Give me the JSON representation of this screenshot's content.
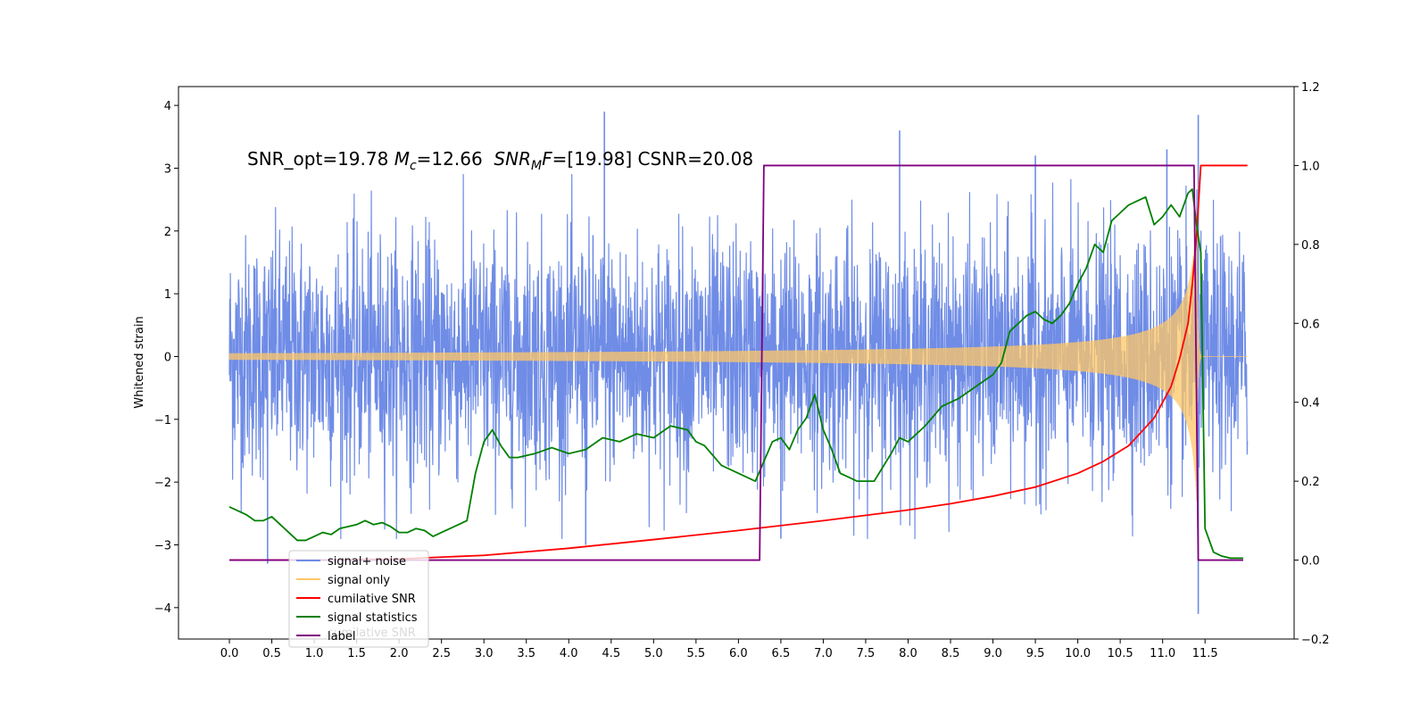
{
  "chart_data": {
    "type": "line",
    "annotation": {
      "parts": [
        {
          "text": "SNR_opt=19.78 ",
          "italic": false
        },
        {
          "text": "M",
          "italic": true
        },
        {
          "text": "c",
          "italic": true,
          "sub": true
        },
        {
          "text": "=12.66  ",
          "italic": false
        },
        {
          "text": "SNR",
          "italic": true
        },
        {
          "text": "M",
          "italic": true,
          "sub": true
        },
        {
          "text": "F",
          "italic": true
        },
        {
          "text": "=[19.98] CSNR=20.08",
          "italic": false
        }
      ]
    },
    "ylabel": "Whitened strain",
    "xlim": [
      -0.6,
      12.55
    ],
    "ylim": [
      -4.5,
      4.3
    ],
    "y2lim": [
      -0.2,
      1.2
    ],
    "x_ticks": [
      "0.0",
      "0.5",
      "1.0",
      "1.5",
      "2.0",
      "2.5",
      "3.0",
      "3.5",
      "4.0",
      "4.5",
      "5.0",
      "5.5",
      "6.0",
      "6.5",
      "7.0",
      "7.5",
      "8.0",
      "8.5",
      "9.0",
      "9.5",
      "10.0",
      "10.5",
      "11.0",
      "11.5"
    ],
    "y_ticks": [
      "−4",
      "−3",
      "−2",
      "−1",
      "0",
      "1",
      "2",
      "3",
      "4"
    ],
    "y2_ticks": [
      "−0.2",
      "0.0",
      "0.2",
      "0.4",
      "0.6",
      "0.8",
      "1.0",
      "1.2"
    ],
    "legend": {
      "placement": "lower-left",
      "entries": [
        {
          "label": "signal+ noise",
          "color": "#6f8ce6"
        },
        {
          "label": "signal only",
          "color": "#ffc766"
        },
        {
          "label": "cumilative SNR",
          "color": "#ff0000"
        },
        {
          "label": "signal statistics",
          "color": "#008000"
        },
        {
          "label": "label",
          "color": "#800080"
        }
      ],
      "ghost_text": "cumilative SNR"
    },
    "series": [
      {
        "name": "signal+ noise",
        "axis": "left",
        "color": "#6f8ce6",
        "style": "dense-noise",
        "x_range": [
          0.0,
          12.0
        ],
        "typical_band": [
          -1.8,
          1.8
        ],
        "spikes": [
          {
            "x": 4.42,
            "y": 3.9
          },
          {
            "x": 7.9,
            "y": 3.6
          },
          {
            "x": 9.5,
            "y": 3.2
          },
          {
            "x": 11.05,
            "y": 3.3
          },
          {
            "x": 11.42,
            "y": 3.85
          },
          {
            "x": 11.42,
            "y": -4.1
          },
          {
            "x": 0.45,
            "y": -3.3
          },
          {
            "x": 4.2,
            "y": -3.0
          },
          {
            "x": 6.5,
            "y": -2.9
          }
        ]
      },
      {
        "name": "signal only",
        "axis": "left",
        "color": "#ffc766",
        "style": "chirp",
        "x_range": [
          0.0,
          12.0
        ],
        "merger_time": 11.4,
        "peak_amplitude": 2.3
      },
      {
        "name": "cumilative SNR",
        "axis": "right",
        "color": "#ff0000",
        "x": [
          0.0,
          1.0,
          2.0,
          3.0,
          4.0,
          5.0,
          6.0,
          7.0,
          8.0,
          8.5,
          9.0,
          9.5,
          10.0,
          10.3,
          10.6,
          10.9,
          11.1,
          11.2,
          11.3,
          11.35,
          11.4,
          11.45,
          12.0
        ],
        "values": [
          0.0,
          0.0,
          0.003,
          0.012,
          0.03,
          0.052,
          0.075,
          0.1,
          0.127,
          0.143,
          0.162,
          0.185,
          0.22,
          0.25,
          0.29,
          0.36,
          0.44,
          0.51,
          0.6,
          0.7,
          0.82,
          1.0,
          1.0
        ]
      },
      {
        "name": "signal statistics",
        "axis": "right",
        "color": "#008000",
        "x": [
          0.0,
          0.1,
          0.2,
          0.3,
          0.4,
          0.5,
          0.6,
          0.8,
          0.9,
          1.0,
          1.1,
          1.2,
          1.3,
          1.4,
          1.5,
          1.6,
          1.7,
          1.8,
          1.9,
          2.0,
          2.1,
          2.2,
          2.3,
          2.4,
          2.5,
          2.6,
          2.7,
          2.8,
          2.9,
          3.0,
          3.1,
          3.2,
          3.3,
          3.4,
          3.5,
          3.6,
          3.8,
          4.0,
          4.2,
          4.4,
          4.6,
          4.8,
          5.0,
          5.2,
          5.4,
          5.5,
          5.6,
          5.8,
          6.0,
          6.2,
          6.3,
          6.4,
          6.5,
          6.6,
          6.7,
          6.8,
          6.9,
          7.0,
          7.1,
          7.2,
          7.3,
          7.4,
          7.6,
          7.8,
          7.9,
          8.0,
          8.2,
          8.4,
          8.6,
          8.8,
          9.0,
          9.1,
          9.2,
          9.3,
          9.4,
          9.5,
          9.6,
          9.7,
          9.8,
          9.9,
          10.0,
          10.1,
          10.2,
          10.3,
          10.4,
          10.5,
          10.6,
          10.7,
          10.8,
          10.9,
          11.0,
          11.1,
          11.2,
          11.3,
          11.35,
          11.4,
          11.45,
          11.5,
          11.6,
          11.7,
          11.8,
          11.95
        ],
        "values": [
          0.135,
          0.125,
          0.115,
          0.1,
          0.1,
          0.11,
          0.09,
          0.05,
          0.05,
          0.06,
          0.07,
          0.065,
          0.08,
          0.085,
          0.09,
          0.1,
          0.09,
          0.095,
          0.085,
          0.07,
          0.07,
          0.08,
          0.075,
          0.06,
          0.07,
          0.08,
          0.09,
          0.1,
          0.22,
          0.3,
          0.33,
          0.29,
          0.26,
          0.26,
          0.265,
          0.27,
          0.285,
          0.27,
          0.28,
          0.31,
          0.3,
          0.32,
          0.31,
          0.34,
          0.33,
          0.3,
          0.29,
          0.24,
          0.22,
          0.2,
          0.25,
          0.3,
          0.31,
          0.28,
          0.33,
          0.36,
          0.42,
          0.33,
          0.28,
          0.22,
          0.21,
          0.2,
          0.2,
          0.27,
          0.31,
          0.3,
          0.34,
          0.39,
          0.41,
          0.44,
          0.47,
          0.5,
          0.58,
          0.6,
          0.62,
          0.63,
          0.61,
          0.6,
          0.62,
          0.65,
          0.7,
          0.74,
          0.8,
          0.78,
          0.86,
          0.88,
          0.9,
          0.91,
          0.92,
          0.85,
          0.87,
          0.9,
          0.87,
          0.93,
          0.94,
          0.85,
          0.78,
          0.08,
          0.02,
          0.01,
          0.005,
          0.005
        ]
      },
      {
        "name": "label",
        "axis": "right",
        "color": "#800080",
        "x": [
          0.0,
          6.25,
          6.3,
          11.37,
          11.42,
          11.95
        ],
        "values": [
          0.0,
          0.0,
          1.0,
          1.0,
          0.0,
          0.0
        ]
      }
    ]
  }
}
